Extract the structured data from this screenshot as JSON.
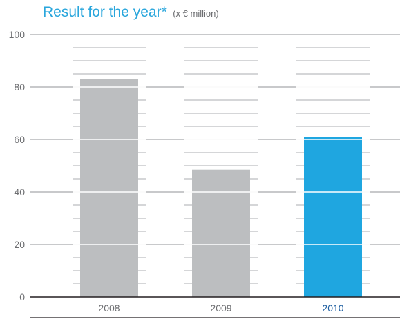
{
  "title": "Result for the year*",
  "unit_note": "(x € million)",
  "colors": {
    "title": "#29a6dc",
    "bar_default": "#bcbec0",
    "bar_highlight": "#1fa6e0",
    "gridline": "#a7a9ac",
    "minor_line": "#bcbec0",
    "tick_text": "#6d6e71",
    "highlight_label": "#1f5fa1"
  },
  "chart_data": {
    "type": "bar",
    "title": "Result for the year*",
    "subtitle": "(x € million)",
    "categories": [
      "2008",
      "2009",
      "2010"
    ],
    "values": [
      83,
      48.5,
      61
    ],
    "highlight": "2010",
    "ylim": [
      0,
      100
    ],
    "yticks": [
      0,
      20,
      40,
      60,
      80,
      100
    ],
    "grid": true,
    "legend": "none"
  }
}
